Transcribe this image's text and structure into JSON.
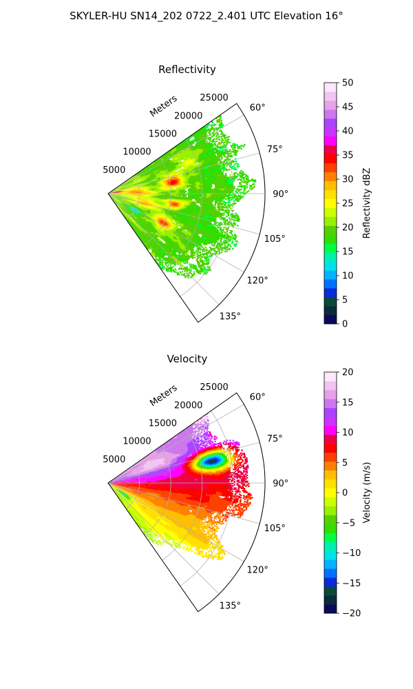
{
  "figure": {
    "title": "SKYLER-HU  SN14_202  0722_2.401 UTC Elevation 16°"
  },
  "chart_data": [
    {
      "type": "heatmap",
      "subtype": "polar-sector",
      "title": "Reflectivity",
      "radial_label": "Meters",
      "range_m": [
        0,
        25000
      ],
      "radial_ticks": [
        5000,
        10000,
        15000,
        20000,
        25000
      ],
      "radial_tick_labels": [
        "5000",
        "10000",
        "15000",
        "20000",
        "25000"
      ],
      "azimuth_range_deg": [
        55,
        145
      ],
      "azimuth_ticks_deg": [
        60,
        75,
        90,
        105,
        120,
        135
      ],
      "azimuth_tick_labels": [
        "60°",
        "75°",
        "90°",
        "105°",
        "120°",
        "135°"
      ],
      "grid": true,
      "colorbar": {
        "label": "Reflectivity dBZ",
        "range": [
          0,
          50
        ],
        "ticks": [
          0,
          5,
          10,
          15,
          20,
          25,
          30,
          35,
          40,
          45,
          50
        ],
        "tick_labels": [
          "0",
          "5",
          "10",
          "15",
          "20",
          "25",
          "30",
          "35",
          "40",
          "45",
          "50"
        ],
        "colors": [
          "#0a0a5a",
          "#0c2a3a",
          "#0b4a3a",
          "#0a2bd8",
          "#0070ff",
          "#00b4ff",
          "#00e2e8",
          "#00f0b0",
          "#00ff40",
          "#33dd00",
          "#55d000",
          "#99f000",
          "#ccff00",
          "#ffff00",
          "#ffe000",
          "#ffbf00",
          "#ff8000",
          "#ff4000",
          "#ff0000",
          "#ee0044",
          "#ff00ff",
          "#cc33ff",
          "#aa44ff",
          "#cc77ee",
          "#e8a0e8",
          "#f2c4f2",
          "#fbe8fb"
        ]
      }
    },
    {
      "type": "heatmap",
      "subtype": "polar-sector",
      "title": "Velocity",
      "radial_label": "Meters",
      "range_m": [
        0,
        25000
      ],
      "radial_ticks": [
        5000,
        10000,
        15000,
        20000,
        25000
      ],
      "radial_tick_labels": [
        "5000",
        "10000",
        "15000",
        "20000",
        "25000"
      ],
      "azimuth_range_deg": [
        55,
        145
      ],
      "azimuth_ticks_deg": [
        60,
        75,
        90,
        105,
        120,
        135
      ],
      "azimuth_tick_labels": [
        "60°",
        "75°",
        "90°",
        "105°",
        "120°",
        "135°"
      ],
      "grid": true,
      "colorbar": {
        "label": "Velocity (m/s)",
        "range": [
          -20,
          20
        ],
        "ticks": [
          -20,
          -15,
          -10,
          -5,
          0,
          5,
          10,
          15,
          20
        ],
        "tick_labels": [
          "−20",
          "−15",
          "−10",
          "−5",
          "0",
          "5",
          "10",
          "15",
          "20"
        ],
        "colors": [
          "#0a0a5a",
          "#0c2a3a",
          "#0b4a3a",
          "#0a2bd8",
          "#0070ff",
          "#00b4ff",
          "#00e2e8",
          "#00f0b0",
          "#00ff40",
          "#33dd00",
          "#55d000",
          "#99f000",
          "#ccff00",
          "#ffff00",
          "#ffe000",
          "#ffbf00",
          "#ff8000",
          "#ff4000",
          "#ff0000",
          "#ee0044",
          "#ff00ff",
          "#cc33ff",
          "#aa44ff",
          "#cc77ee",
          "#e8a0e8",
          "#f2c4f2",
          "#fbe8fb"
        ]
      }
    }
  ]
}
